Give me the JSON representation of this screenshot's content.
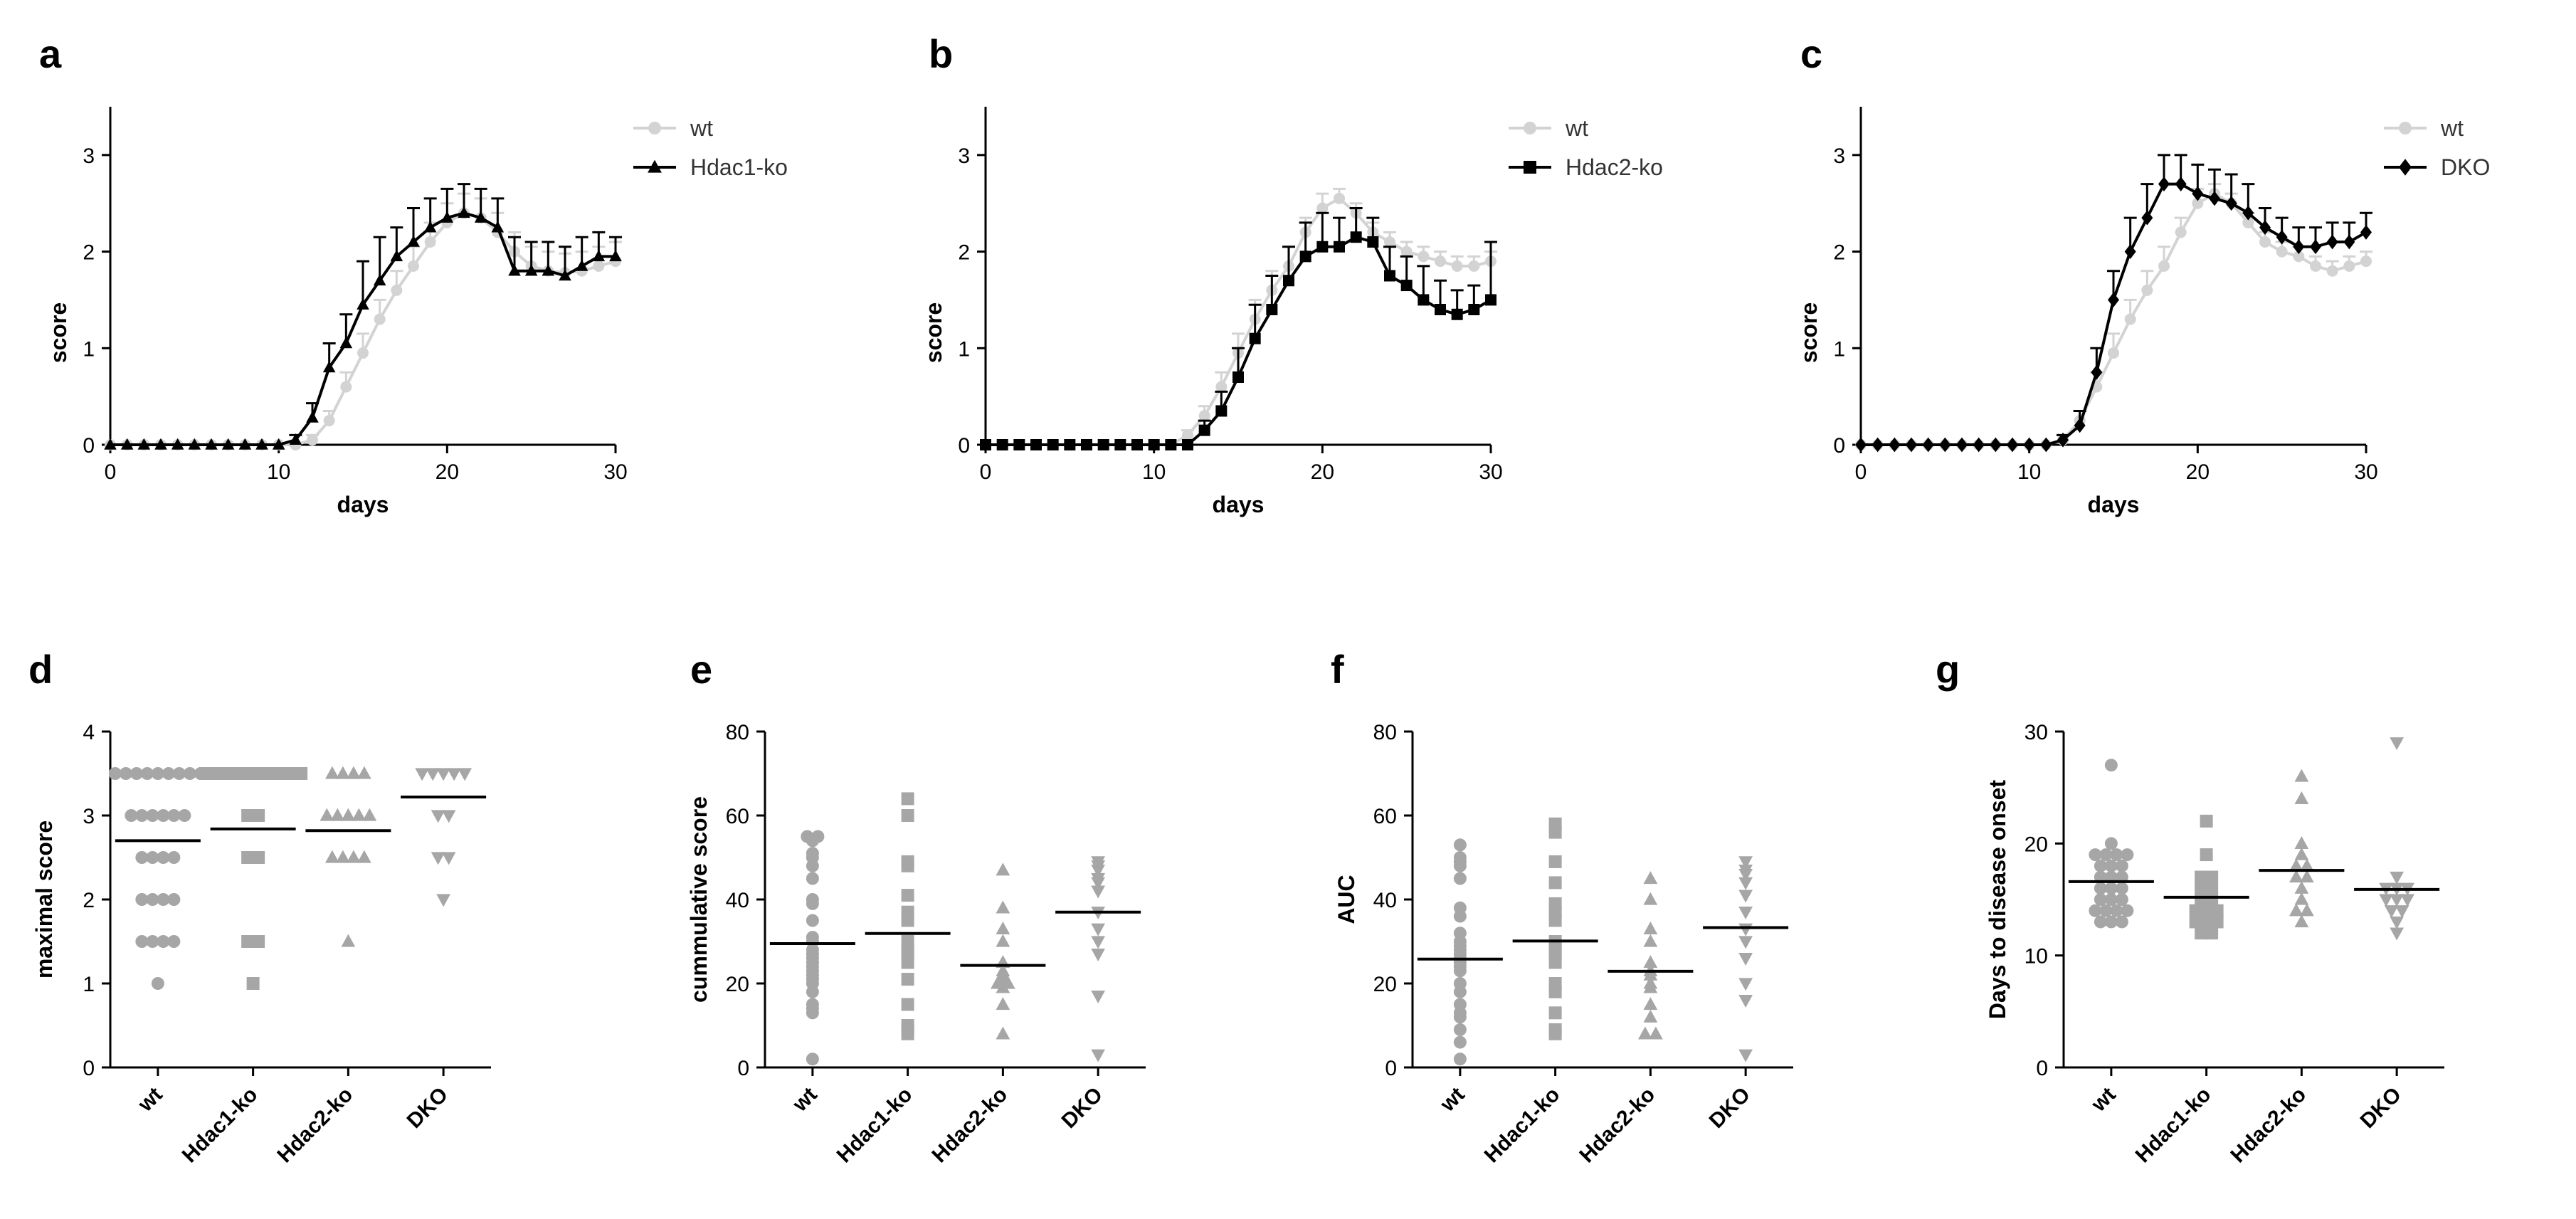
{
  "figure": {
    "panel_letters": [
      "a",
      "b",
      "c",
      "d",
      "e",
      "f",
      "g"
    ]
  },
  "colors": {
    "wt": "#d3d3d3",
    "ko": "#000000",
    "dots": "#a6a6a6",
    "axis": "#000000"
  },
  "chart_data": [
    {
      "panel": "a",
      "type": "line",
      "xlabel": "days",
      "ylabel": "score",
      "xlim": [
        0,
        30
      ],
      "ylim": [
        0,
        3.5
      ],
      "xticks": [
        0,
        10,
        20,
        30
      ],
      "yticks": [
        0,
        1,
        2,
        3
      ],
      "legend_position": "top-right",
      "x": [
        0,
        1,
        2,
        3,
        4,
        5,
        6,
        7,
        8,
        9,
        10,
        11,
        12,
        13,
        14,
        15,
        16,
        17,
        18,
        19,
        20,
        21,
        22,
        23,
        24,
        25,
        26,
        27,
        28,
        29,
        30
      ],
      "series": [
        {
          "name": "wt",
          "marker": "circle",
          "color": "#d3d3d3",
          "values": [
            0,
            0,
            0,
            0,
            0,
            0,
            0,
            0,
            0,
            0,
            0,
            0,
            0.05,
            0.25,
            0.6,
            0.95,
            1.3,
            1.6,
            1.85,
            2.1,
            2.3,
            2.4,
            2.35,
            2.2,
            2.0,
            1.85,
            1.8,
            1.78,
            1.8,
            1.85,
            1.9
          ],
          "errors": [
            0,
            0,
            0,
            0,
            0,
            0,
            0,
            0,
            0,
            0,
            0,
            0,
            0.05,
            0.1,
            0.15,
            0.2,
            0.2,
            0.2,
            0.2,
            0.2,
            0.2,
            0.2,
            0.2,
            0.2,
            0.2,
            0.2,
            0.2,
            0.2,
            0.2,
            0.2,
            0.2
          ]
        },
        {
          "name": "Hdac1-ko",
          "marker": "triangle",
          "color": "#000000",
          "values": [
            0,
            0,
            0,
            0,
            0,
            0,
            0,
            0,
            0,
            0,
            0,
            0.05,
            0.28,
            0.8,
            1.05,
            1.45,
            1.7,
            1.95,
            2.1,
            2.25,
            2.35,
            2.4,
            2.35,
            2.25,
            1.8,
            1.8,
            1.8,
            1.75,
            1.85,
            1.95,
            1.95
          ],
          "errors": [
            0,
            0,
            0,
            0,
            0,
            0,
            0,
            0,
            0,
            0,
            0,
            0.05,
            0.15,
            0.25,
            0.3,
            0.45,
            0.45,
            0.3,
            0.35,
            0.3,
            0.3,
            0.3,
            0.3,
            0.3,
            0.35,
            0.3,
            0.3,
            0.3,
            0.3,
            0.25,
            0.2
          ]
        }
      ]
    },
    {
      "panel": "b",
      "type": "line",
      "xlabel": "days",
      "ylabel": "score",
      "xlim": [
        0,
        30
      ],
      "ylim": [
        0,
        3.5
      ],
      "xticks": [
        0,
        10,
        20,
        30
      ],
      "yticks": [
        0,
        1,
        2,
        3
      ],
      "legend_position": "top-right",
      "x": [
        0,
        1,
        2,
        3,
        4,
        5,
        6,
        7,
        8,
        9,
        10,
        11,
        12,
        13,
        14,
        15,
        16,
        17,
        18,
        19,
        20,
        21,
        22,
        23,
        24,
        25,
        26,
        27,
        28,
        29,
        30
      ],
      "series": [
        {
          "name": "wt",
          "marker": "circle",
          "color": "#d3d3d3",
          "values": [
            0,
            0,
            0,
            0,
            0,
            0,
            0,
            0,
            0,
            0,
            0,
            0,
            0.1,
            0.3,
            0.6,
            0.95,
            1.3,
            1.6,
            1.85,
            2.2,
            2.45,
            2.55,
            2.4,
            2.2,
            2.1,
            2.0,
            1.95,
            1.9,
            1.85,
            1.85,
            1.9
          ],
          "errors": [
            0,
            0,
            0,
            0,
            0,
            0,
            0,
            0,
            0,
            0,
            0,
            0,
            0.05,
            0.1,
            0.15,
            0.2,
            0.2,
            0.2,
            0.2,
            0.15,
            0.15,
            0.1,
            0.1,
            0.1,
            0.1,
            0.1,
            0.1,
            0.1,
            0.1,
            0.1,
            0.1
          ]
        },
        {
          "name": "Hdac2-ko",
          "marker": "square",
          "color": "#000000",
          "values": [
            0,
            0,
            0,
            0,
            0,
            0,
            0,
            0,
            0,
            0,
            0,
            0,
            0,
            0.15,
            0.35,
            0.7,
            1.1,
            1.4,
            1.7,
            1.95,
            2.05,
            2.05,
            2.15,
            2.1,
            1.75,
            1.65,
            1.5,
            1.4,
            1.35,
            1.4,
            1.5
          ],
          "errors": [
            0,
            0,
            0,
            0,
            0,
            0,
            0,
            0,
            0,
            0,
            0,
            0,
            0,
            0.1,
            0.2,
            0.3,
            0.35,
            0.35,
            0.35,
            0.35,
            0.35,
            0.3,
            0.3,
            0.25,
            0.3,
            0.3,
            0.35,
            0.3,
            0.25,
            0.25,
            0.6
          ]
        }
      ]
    },
    {
      "panel": "c",
      "type": "line",
      "xlabel": "days",
      "ylabel": "score",
      "xlim": [
        0,
        30
      ],
      "ylim": [
        0,
        3.5
      ],
      "xticks": [
        0,
        10,
        20,
        30
      ],
      "yticks": [
        0,
        1,
        2,
        3
      ],
      "legend_position": "top-right",
      "x": [
        0,
        1,
        2,
        3,
        4,
        5,
        6,
        7,
        8,
        9,
        10,
        11,
        12,
        13,
        14,
        15,
        16,
        17,
        18,
        19,
        20,
        21,
        22,
        23,
        24,
        25,
        26,
        27,
        28,
        29,
        30
      ],
      "series": [
        {
          "name": "wt",
          "marker": "circle",
          "color": "#d3d3d3",
          "values": [
            0,
            0,
            0,
            0,
            0,
            0,
            0,
            0,
            0,
            0,
            0,
            0,
            0.05,
            0.25,
            0.6,
            0.95,
            1.3,
            1.6,
            1.85,
            2.2,
            2.5,
            2.6,
            2.5,
            2.3,
            2.1,
            2.0,
            1.95,
            1.85,
            1.8,
            1.85,
            1.9
          ],
          "errors": [
            0,
            0,
            0,
            0,
            0,
            0,
            0,
            0,
            0,
            0,
            0,
            0,
            0.05,
            0.1,
            0.15,
            0.2,
            0.2,
            0.2,
            0.2,
            0.15,
            0.15,
            0.1,
            0.1,
            0.1,
            0.1,
            0.1,
            0.1,
            0.1,
            0.1,
            0.1,
            0.1
          ]
        },
        {
          "name": "DKO",
          "marker": "diamond",
          "color": "#000000",
          "values": [
            0,
            0,
            0,
            0,
            0,
            0,
            0,
            0,
            0,
            0,
            0,
            0,
            0.05,
            0.2,
            0.75,
            1.5,
            2.0,
            2.35,
            2.7,
            2.7,
            2.6,
            2.55,
            2.5,
            2.4,
            2.25,
            2.15,
            2.05,
            2.05,
            2.1,
            2.1,
            2.2
          ],
          "errors": [
            0,
            0,
            0,
            0,
            0,
            0,
            0,
            0,
            0,
            0,
            0,
            0,
            0.05,
            0.15,
            0.25,
            0.3,
            0.35,
            0.35,
            0.3,
            0.3,
            0.3,
            0.3,
            0.3,
            0.3,
            0.2,
            0.2,
            0.2,
            0.2,
            0.2,
            0.2,
            0.2
          ]
        }
      ]
    },
    {
      "panel": "d",
      "type": "scatter",
      "ylabel": "maximal score",
      "ylim": [
        0,
        4
      ],
      "yticks": [
        0,
        1,
        2,
        3,
        4
      ],
      "categories": [
        "wt",
        "Hdac1-ko",
        "Hdac2-ko",
        "DKO"
      ],
      "markers": [
        "circle",
        "square",
        "triangle",
        "triangle-down"
      ],
      "means": [
        2.7,
        2.84,
        2.82,
        3.22
      ],
      "points": [
        [
          3.5,
          3.5,
          3.5,
          3.5,
          3.5,
          3.5,
          3.5,
          3.5,
          3.5,
          3.0,
          3.0,
          3.0,
          3.0,
          3.0,
          3.0,
          2.5,
          2.5,
          2.5,
          2.5,
          2.0,
          2.0,
          2.0,
          2.0,
          1.5,
          1.5,
          1.5,
          1.5,
          1.0
        ],
        [
          3.5,
          3.5,
          3.5,
          3.5,
          3.5,
          3.5,
          3.5,
          3.5,
          3.5,
          3.5,
          3.0,
          3.0,
          2.5,
          2.5,
          1.5,
          1.5,
          1.0
        ],
        [
          3.5,
          3.5,
          3.5,
          3.5,
          3.0,
          3.0,
          3.0,
          3.0,
          3.0,
          2.5,
          2.5,
          2.5,
          2.5,
          1.5
        ],
        [
          3.5,
          3.5,
          3.5,
          3.5,
          3.5,
          3.0,
          3.0,
          2.5,
          2.5,
          2.0
        ]
      ]
    },
    {
      "panel": "e",
      "type": "scatter",
      "ylabel": "cummulative score",
      "ylim": [
        0,
        80
      ],
      "yticks": [
        0,
        20,
        40,
        60,
        80
      ],
      "categories": [
        "wt",
        "Hdac1-ko",
        "Hdac2-ko",
        "DKO"
      ],
      "markers": [
        "circle",
        "square",
        "triangle",
        "triangle-down"
      ],
      "means": [
        29.5,
        31.9,
        24.3,
        37.0
      ],
      "points": [
        [
          55,
          55,
          54,
          51,
          50,
          48,
          45,
          40,
          39,
          35,
          31,
          30,
          28,
          27,
          26,
          25,
          24,
          23,
          22,
          21,
          20,
          18,
          15,
          14,
          13,
          2
        ],
        [
          64,
          60,
          49,
          48,
          41,
          37,
          35,
          30,
          28,
          27,
          25,
          21,
          15,
          10,
          9,
          8
        ],
        [
          47,
          38,
          33,
          30,
          25,
          23,
          22,
          21,
          20,
          20,
          19,
          15,
          8
        ],
        [
          49,
          48,
          47,
          45,
          44,
          42,
          37,
          33,
          30,
          27,
          17,
          3
        ]
      ]
    },
    {
      "panel": "f",
      "type": "scatter",
      "ylabel": "AUC",
      "ylim": [
        0,
        80
      ],
      "yticks": [
        0,
        20,
        40,
        60,
        80
      ],
      "categories": [
        "wt",
        "Hdac1-ko",
        "Hdac2-ko",
        "DKO"
      ],
      "markers": [
        "circle",
        "square",
        "triangle",
        "triangle-down"
      ],
      "means": [
        25.8,
        30.1,
        22.9,
        33.3
      ],
      "points": [
        [
          53,
          50,
          49,
          48,
          45,
          38,
          36,
          32,
          30,
          29,
          28,
          27,
          26,
          25,
          24,
          23,
          20,
          18,
          15,
          13,
          12,
          9,
          6,
          2
        ],
        [
          58,
          56,
          49,
          44,
          39,
          37,
          35,
          30,
          28,
          27,
          25,
          20,
          18,
          13,
          9,
          8
        ],
        [
          45,
          40,
          33,
          30,
          25,
          23,
          22,
          20,
          19,
          15,
          12,
          8,
          8
        ],
        [
          49,
          47,
          46,
          44,
          41,
          37,
          33,
          30,
          26,
          20,
          16,
          3
        ]
      ]
    },
    {
      "panel": "g",
      "type": "scatter",
      "ylabel": "Days to disease onset",
      "ylim": [
        0,
        30
      ],
      "yticks": [
        0,
        10,
        20,
        30
      ],
      "categories": [
        "wt",
        "Hdac1-ko",
        "Hdac2-ko",
        "DKO"
      ],
      "markers": [
        "circle",
        "square",
        "triangle",
        "triangle-down"
      ],
      "means": [
        16.6,
        15.2,
        17.6,
        15.9
      ],
      "points": [
        [
          27,
          20,
          19,
          19,
          19,
          19,
          18,
          18,
          18,
          17,
          17,
          17,
          16,
          16,
          16,
          15,
          15,
          15,
          14,
          14,
          14,
          14,
          13,
          13,
          13
        ],
        [
          22,
          19,
          17,
          17,
          16,
          16,
          15,
          15,
          14,
          14,
          14,
          13,
          13,
          13,
          12,
          12
        ],
        [
          26,
          24,
          20,
          19,
          18,
          18,
          17,
          17,
          16,
          15,
          14,
          14,
          13
        ],
        [
          29,
          17,
          16,
          16,
          16,
          15,
          15,
          15,
          14,
          14,
          13,
          12
        ]
      ]
    }
  ]
}
